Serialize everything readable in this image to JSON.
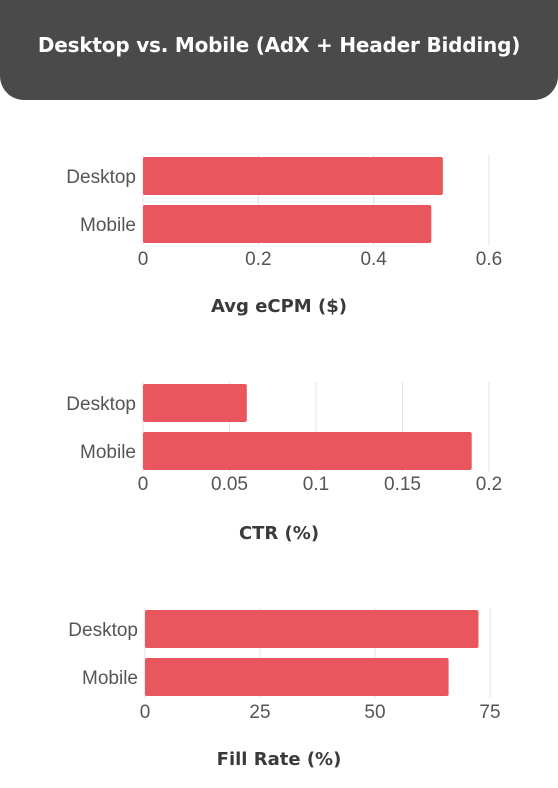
{
  "header": {
    "title": "Desktop vs. Mobile (AdX + Header Bidding)"
  },
  "colors": {
    "bar": "#e9565d",
    "header_bg": "#4a4a4a",
    "grid": "#e2e2e2"
  },
  "chart_data": [
    {
      "type": "bar",
      "orientation": "horizontal",
      "categories": [
        "Desktop",
        "Mobile"
      ],
      "values": [
        0.52,
        0.5
      ],
      "xlabel": "Avg eCPM ($)",
      "xlim": [
        0,
        0.6
      ],
      "xticks": [
        0,
        0.2,
        0.4,
        0.6
      ],
      "xtick_labels": [
        "0",
        "0.2",
        "0.4",
        "0.6"
      ],
      "grid": true
    },
    {
      "type": "bar",
      "orientation": "horizontal",
      "categories": [
        "Desktop",
        "Mobile"
      ],
      "values": [
        0.06,
        0.19
      ],
      "xlabel": "CTR (%)",
      "xlim": [
        0,
        0.2
      ],
      "xticks": [
        0,
        0.05,
        0.1,
        0.15,
        0.2
      ],
      "xtick_labels": [
        "0",
        "0.05",
        "0.1",
        "0.15",
        "0.2"
      ],
      "grid": true
    },
    {
      "type": "bar",
      "orientation": "horizontal",
      "categories": [
        "Desktop",
        "Mobile"
      ],
      "values": [
        72.5,
        66
      ],
      "xlabel": "Fill Rate (%)",
      "xlim": [
        0,
        75
      ],
      "xticks": [
        0,
        25,
        50,
        75
      ],
      "xtick_labels": [
        "0",
        "25",
        "50",
        "75"
      ],
      "grid": true
    }
  ]
}
